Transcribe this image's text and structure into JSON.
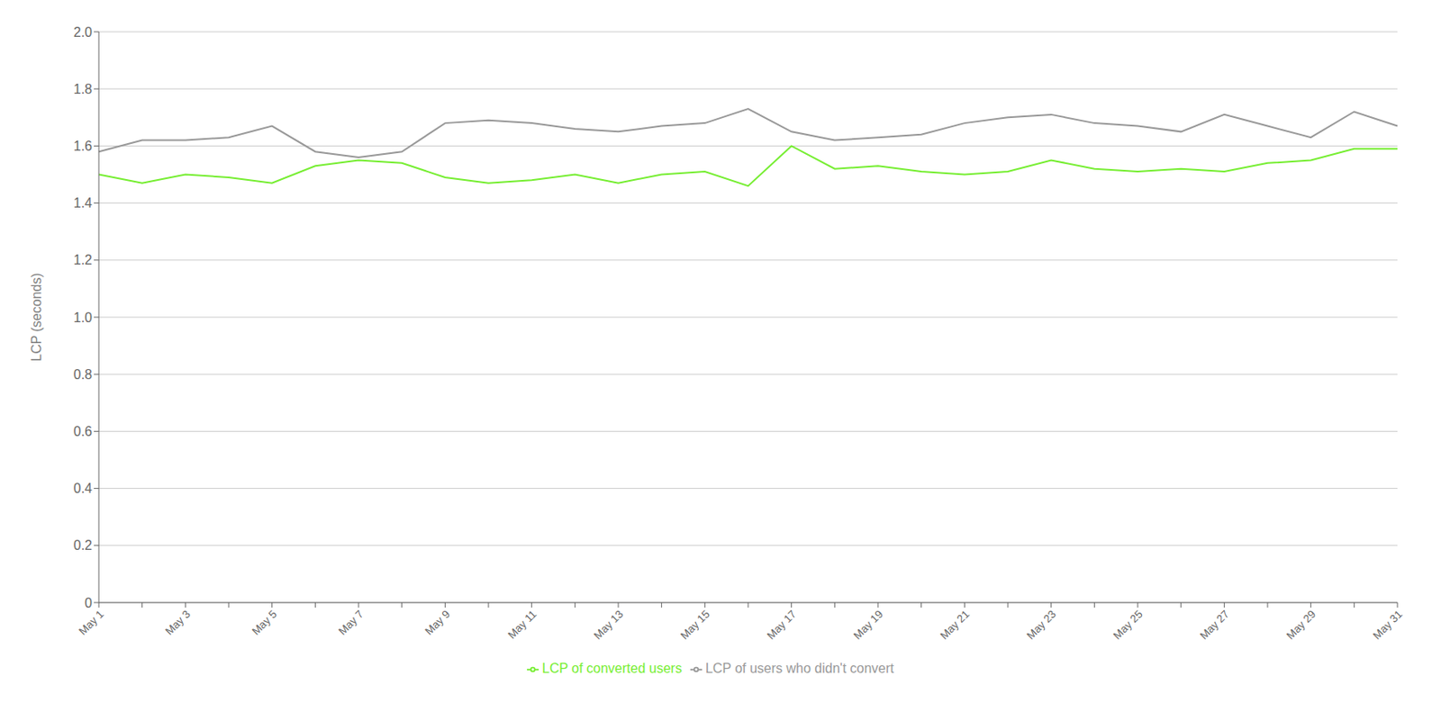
{
  "chart_data": {
    "type": "line",
    "y_label": "LCP (seconds)",
    "categories": [
      "May 1",
      null,
      "May 3",
      null,
      "May 5",
      null,
      "May 7",
      null,
      "May 9",
      null,
      "May 11",
      null,
      "May 13",
      null,
      "May 15",
      null,
      "May 17",
      null,
      "May 19",
      null,
      "May 21",
      null,
      "May 23",
      null,
      "May 25",
      null,
      "May 27",
      null,
      "May 29",
      null,
      "May 31"
    ],
    "series": [
      {
        "name": "LCP of users who didn't convert",
        "color": "#999999",
        "values": [
          1.58,
          1.62,
          1.62,
          1.63,
          1.67,
          1.58,
          1.56,
          1.58,
          1.68,
          1.69,
          1.68,
          1.66,
          1.65,
          1.67,
          1.68,
          1.73,
          1.65,
          1.62,
          1.63,
          1.64,
          1.68,
          1.7,
          1.71,
          1.68,
          1.67,
          1.65,
          1.71,
          1.67,
          1.63,
          1.72,
          1.67
        ]
      },
      {
        "name": "LCP of converted users",
        "color": "#77ee33",
        "values": [
          1.5,
          1.47,
          1.5,
          1.49,
          1.47,
          1.53,
          1.55,
          1.54,
          1.49,
          1.47,
          1.48,
          1.5,
          1.47,
          1.5,
          1.51,
          1.46,
          1.6,
          1.52,
          1.53,
          1.51,
          1.5,
          1.51,
          1.55,
          1.52,
          1.51,
          1.52,
          1.51,
          1.54,
          1.55,
          1.59,
          1.59
        ]
      }
    ],
    "ylim": [
      0,
      2.0
    ],
    "yticks": [
      0,
      0.2,
      0.4,
      0.6,
      0.8,
      {
        "value": 1.0,
        "label": "1.0"
      },
      1.2,
      1.4,
      1.6,
      1.8,
      {
        "value": 2.0,
        "label": "2.0"
      }
    ],
    "grid": "y",
    "legend": "bottom"
  }
}
